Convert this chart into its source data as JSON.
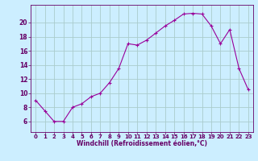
{
  "x": [
    0,
    1,
    2,
    3,
    4,
    5,
    6,
    7,
    8,
    9,
    10,
    11,
    12,
    13,
    14,
    15,
    16,
    17,
    18,
    19,
    20,
    21,
    22,
    23
  ],
  "y": [
    9.0,
    7.5,
    6.0,
    6.0,
    8.0,
    8.5,
    9.5,
    10.0,
    11.5,
    13.5,
    17.0,
    16.8,
    17.5,
    18.5,
    19.5,
    20.3,
    21.2,
    21.3,
    21.2,
    19.5,
    17.0,
    19.0,
    13.5,
    10.5
  ],
  "line_color": "#990099",
  "marker": "+",
  "marker_size": 3,
  "bg_color": "#cceeff",
  "grid_color": "#aacccc",
  "xlabel": "Windchill (Refroidissement éolien,°C)",
  "xlabel_color": "#660066",
  "tick_color": "#660066",
  "spine_color": "#660066",
  "ylim": [
    4.5,
    22.5
  ],
  "yticks": [
    6,
    8,
    10,
    12,
    14,
    16,
    18,
    20
  ],
  "xlim": [
    -0.5,
    23.5
  ],
  "xticks": [
    0,
    1,
    2,
    3,
    4,
    5,
    6,
    7,
    8,
    9,
    10,
    11,
    12,
    13,
    14,
    15,
    16,
    17,
    18,
    19,
    20,
    21,
    22,
    23
  ],
  "tick_fontsize": 5.0,
  "xlabel_fontsize": 5.5,
  "linewidth": 0.8
}
